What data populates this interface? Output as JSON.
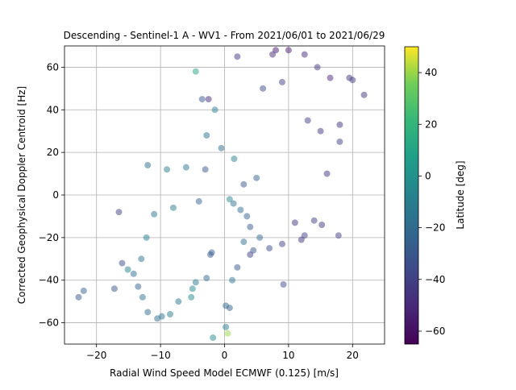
{
  "chart_data": {
    "type": "scatter",
    "title": "Descending - Sentinel-1 A - WV1 - From 2021/06/01 to 2021/06/29",
    "xlabel": "Radial Wind Speed Model ECMWF (0.125) [m/s]",
    "ylabel": "Corrected Geophysical Doppler Centroid [Hz]",
    "xlim": [
      -25,
      25
    ],
    "ylim": [
      -70,
      70
    ],
    "xticks": [
      -20,
      -10,
      0,
      10,
      20
    ],
    "yticks": [
      -60,
      -40,
      -20,
      0,
      20,
      40,
      60
    ],
    "grid": true,
    "colormap": "viridis",
    "point_alpha": 0.5,
    "colorbar": {
      "label": "Latitude [deg]",
      "range": [
        -65,
        50
      ],
      "ticks": [
        -60,
        -40,
        -20,
        0,
        20,
        40
      ]
    },
    "points_x": [
      -22.8,
      -22.0,
      -17.2,
      -16.0,
      -15.1,
      -14.2,
      -13.5,
      -12.8,
      -12.0,
      -16.5,
      -13.0,
      -12.2,
      -10.5,
      -9.8,
      -8.5,
      -5.2,
      -7.2,
      -5.0,
      -4.5,
      -2.8,
      -2.2,
      -2.0,
      0.2,
      0.5,
      -1.8,
      0.2,
      0.8,
      1.2,
      2.0,
      3.0,
      4.5,
      4.0,
      5.5,
      -4.5,
      -3.5,
      -2.5,
      2.0,
      8.0,
      7.5,
      10.0,
      12.5,
      14.5,
      16.5,
      19.5,
      20.0,
      21.8,
      18.0,
      15.0,
      13.0,
      6.0,
      9.0,
      -1.5,
      -2.8,
      -0.5,
      1.5,
      0.8,
      1.4,
      2.5,
      3.5,
      4.0,
      9.2,
      15.2,
      17.8,
      12.5,
      12.0,
      9.0,
      7.0,
      11.0,
      14.0,
      16.0,
      18.0,
      -3.0,
      -6.0,
      -9.0,
      -12.0,
      -4.0,
      -8.0,
      -11.0,
      3.0,
      5.0
    ],
    "points_y": [
      -48,
      -45,
      -44,
      -32,
      -35,
      -37,
      -43,
      -48,
      -55,
      -8,
      -30,
      -20,
      -58,
      -57,
      -56,
      -48,
      -50,
      -44,
      -41,
      -39,
      -28,
      -27,
      -62,
      -65,
      -67,
      -52,
      -53,
      -40,
      -34,
      -22,
      -26,
      -28,
      -20,
      58,
      45,
      45,
      65,
      68,
      66,
      68,
      66,
      60,
      55,
      55,
      54,
      47,
      33,
      30,
      35,
      50,
      53,
      40,
      28,
      22,
      17,
      -2,
      -4,
      -7,
      -10,
      -15,
      -42,
      -14,
      -19,
      -19,
      -21,
      -23,
      -25,
      -13,
      -12,
      10,
      25,
      12,
      13,
      12,
      14,
      -3,
      -6,
      -9,
      5,
      8
    ],
    "points_c": [
      -30,
      -25,
      -30,
      -35,
      -10,
      -20,
      -25,
      -15,
      -20,
      -40,
      -15,
      -10,
      -20,
      -15,
      -10,
      -5,
      -15,
      -5,
      -10,
      -20,
      -30,
      -25,
      -10,
      40,
      -5,
      -20,
      -25,
      -15,
      -30,
      -20,
      -30,
      -40,
      -20,
      10,
      -30,
      -50,
      -45,
      -55,
      -50,
      -55,
      -50,
      -45,
      -50,
      -45,
      -40,
      -45,
      -45,
      -45,
      -40,
      -35,
      -40,
      -10,
      -15,
      -20,
      -10,
      -5,
      -15,
      -20,
      -25,
      -30,
      -35,
      -45,
      -40,
      -40,
      -45,
      -40,
      -35,
      -45,
      -40,
      -45,
      -40,
      -30,
      -15,
      -10,
      -20,
      -25,
      -10,
      -15,
      -30,
      -25
    ]
  }
}
